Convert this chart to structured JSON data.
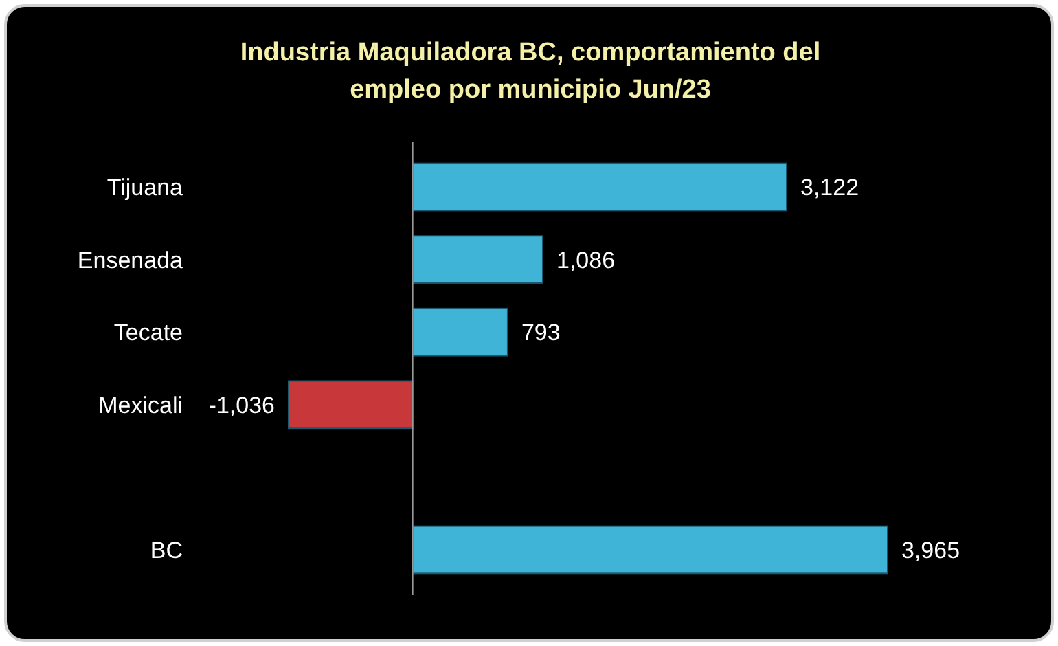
{
  "chart_data": {
    "type": "bar",
    "orientation": "horizontal",
    "title": "Industria Maquiladora BC, comportamiento del empleo por municipio Jun/23",
    "categories": [
      "Tijuana",
      "Ensenada",
      "Tecate",
      "Mexicali",
      null,
      "BC"
    ],
    "values": [
      3122,
      1086,
      793,
      -1036,
      null,
      3965
    ],
    "colors": [
      "#3fb4d6",
      "#3fb4d6",
      "#3fb4d6",
      "#c8383a",
      null,
      "#3fb4d6"
    ],
    "value_labels": [
      "3,122",
      "1,086",
      "793",
      "-1,036",
      null,
      "3,965"
    ]
  }
}
